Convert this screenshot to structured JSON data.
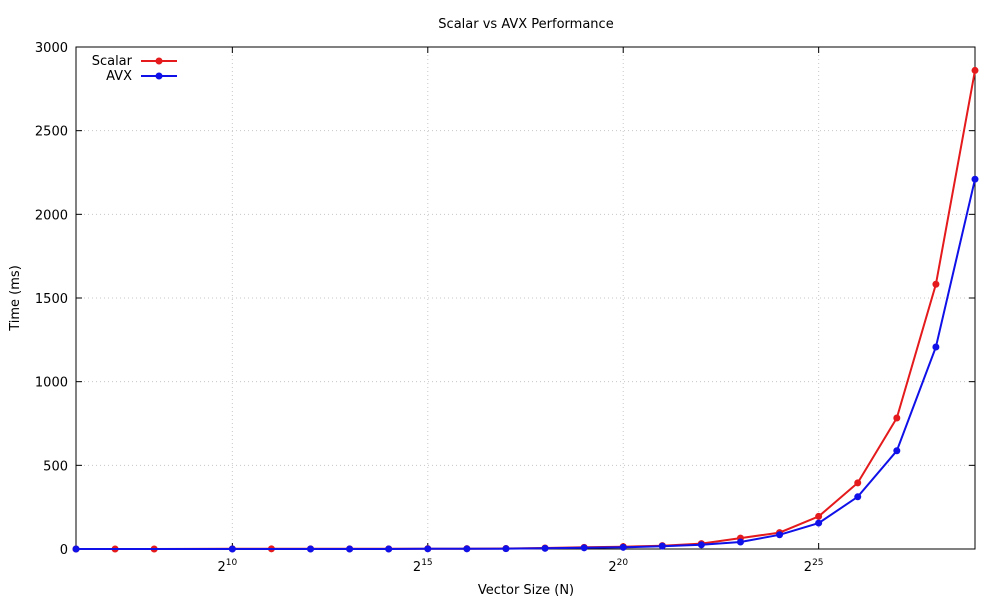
{
  "chart_data": {
    "type": "line",
    "title": "Scalar vs AVX Performance",
    "xlabel": "Vector Size (N)",
    "ylabel": "Time (ms)",
    "x_scale": "log2",
    "x_exponent_range": [
      6,
      29
    ],
    "ylim": [
      0,
      3000
    ],
    "x_ticks": [
      {
        "base": "2",
        "exp": "10",
        "value_exp": 10
      },
      {
        "base": "2",
        "exp": "15",
        "value_exp": 15
      },
      {
        "base": "2",
        "exp": "20",
        "value_exp": 20
      },
      {
        "base": "2",
        "exp": "25",
        "value_exp": 25
      }
    ],
    "y_ticks": [
      "0",
      "500",
      "1000",
      "1500",
      "2000",
      "2500",
      "3000"
    ],
    "grid": true,
    "legend_position": "top-left",
    "series": [
      {
        "name": "Scalar",
        "color": "#e41a1c",
        "x_exp": [
          6,
          7,
          8,
          10,
          11,
          12,
          13,
          14,
          15,
          16,
          17,
          18,
          19,
          20,
          21,
          22,
          23,
          24,
          25,
          26,
          27,
          28,
          29
        ],
        "values": [
          0,
          0,
          0,
          1,
          1,
          1,
          1,
          1,
          2,
          2,
          3,
          6,
          10,
          14,
          20,
          32,
          65,
          98,
          195,
          395,
          783,
          1582,
          2860
        ]
      },
      {
        "name": "AVX",
        "color": "#1010e8",
        "x_exp": [
          6,
          10,
          12,
          13,
          14,
          15,
          16,
          17,
          18,
          19,
          20,
          21,
          22,
          23,
          24,
          25,
          26,
          27,
          28,
          29
        ],
        "values": [
          0,
          0,
          0,
          0,
          0,
          1,
          1,
          2,
          4,
          7,
          10,
          17,
          25,
          42,
          85,
          155,
          312,
          587,
          1207,
          2210
        ]
      }
    ]
  }
}
